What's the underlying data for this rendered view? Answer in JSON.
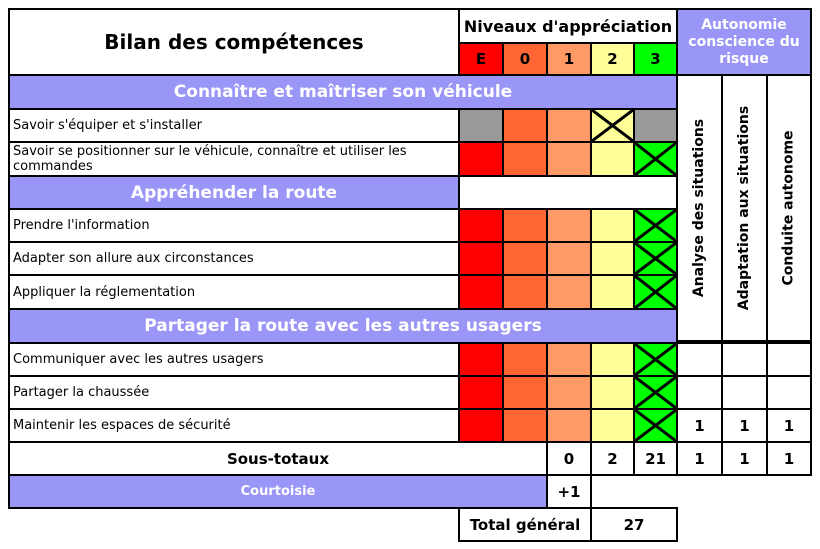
{
  "header": {
    "title": "Bilan des compétences",
    "levels_title": "Niveaux d'appréciation",
    "levels": [
      "E",
      "0",
      "1",
      "2",
      "3"
    ],
    "autonomy_title": "Autonomie conscience du risque",
    "autonomy_columns": [
      "Analyse des situations",
      "Adaptation aux situations",
      "Conduite autonome"
    ]
  },
  "sections": [
    {
      "title": "Connaître et maîtriser son véhicule"
    },
    {
      "title": "Appréhender la route"
    },
    {
      "title": "Partager la route avec les autres usagers"
    }
  ],
  "rows": [
    {
      "label": "Savoir s'équiper et s'installer"
    },
    {
      "label": "Savoir se positionner sur le véhicule, connaître et utiliser les commandes"
    },
    {
      "label": "Prendre l'information"
    },
    {
      "label": "Adapter son allure aux circonstances"
    },
    {
      "label": "Appliquer la réglementation"
    },
    {
      "label": "Communiquer avec les autres usagers"
    },
    {
      "label": "Partager la chaussée"
    },
    {
      "label": "Maintenir les espaces de sécurité",
      "autonomy": [
        "1",
        "1",
        "1"
      ]
    }
  ],
  "subtotals": {
    "label": "Sous-totaux",
    "levels": [
      "0",
      "2",
      "21"
    ],
    "autonomy": [
      "1",
      "1",
      "1"
    ]
  },
  "courtoisie": {
    "label": "Courtoisie",
    "value": "+1"
  },
  "total": {
    "label": "Total général",
    "value": "27"
  },
  "colors": {
    "section_header": "#9a96f7",
    "level_E": "#fe0000",
    "level_0": "#ff6633",
    "level_1": "#ff9966",
    "level_2": "#ffff99",
    "level_3": "#00ff00",
    "not_applicable": "#999999"
  }
}
